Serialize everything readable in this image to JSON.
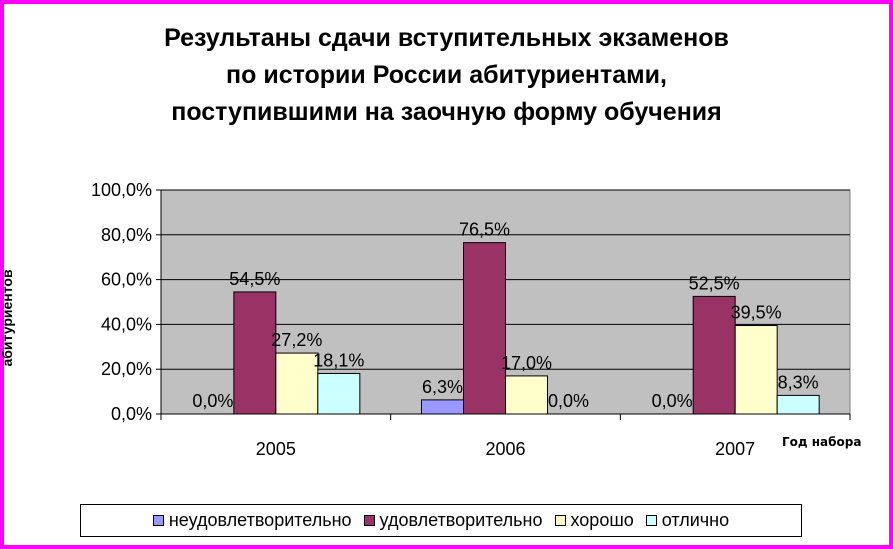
{
  "chart_data": {
    "type": "bar",
    "title_lines": [
      "Результаны сдачи вступительных экзаменов",
      "по истории России абитуриентами,",
      "поступившими на заочную форму обучения"
    ],
    "xlabel": "Год набора",
    "ylabel": "абитуриентов",
    "categories": [
      "2005",
      "2006",
      "2007"
    ],
    "ylim": [
      0,
      100
    ],
    "yticks": [
      "0,0%",
      "20,0%",
      "40,0%",
      "60,0%",
      "80,0%",
      "100,0%"
    ],
    "series": [
      {
        "name": "неудовлетворительно",
        "color": "#9999ff",
        "values": [
          0.0,
          6.3,
          0.0
        ],
        "labels": [
          "0,0%",
          "6,3%",
          "0,0%"
        ]
      },
      {
        "name": "удовлетворительно",
        "color": "#993366",
        "values": [
          54.5,
          76.5,
          52.5
        ],
        "labels": [
          "54,5%",
          "76,5%",
          "52,5%"
        ]
      },
      {
        "name": "хорошо",
        "color": "#ffffcc",
        "values": [
          27.2,
          17.0,
          39.5
        ],
        "labels": [
          "27,2%",
          "17,0%",
          "39,5%"
        ]
      },
      {
        "name": "отлично",
        "color": "#ccffff",
        "values": [
          18.1,
          0.0,
          8.3
        ],
        "labels": [
          "18,1%",
          "0,0%",
          "8,3%"
        ]
      }
    ],
    "grid": true,
    "plot_background": "#c0c0c0",
    "legend_position": "bottom"
  },
  "colors": {
    "frame_border": "#ff00ff"
  }
}
